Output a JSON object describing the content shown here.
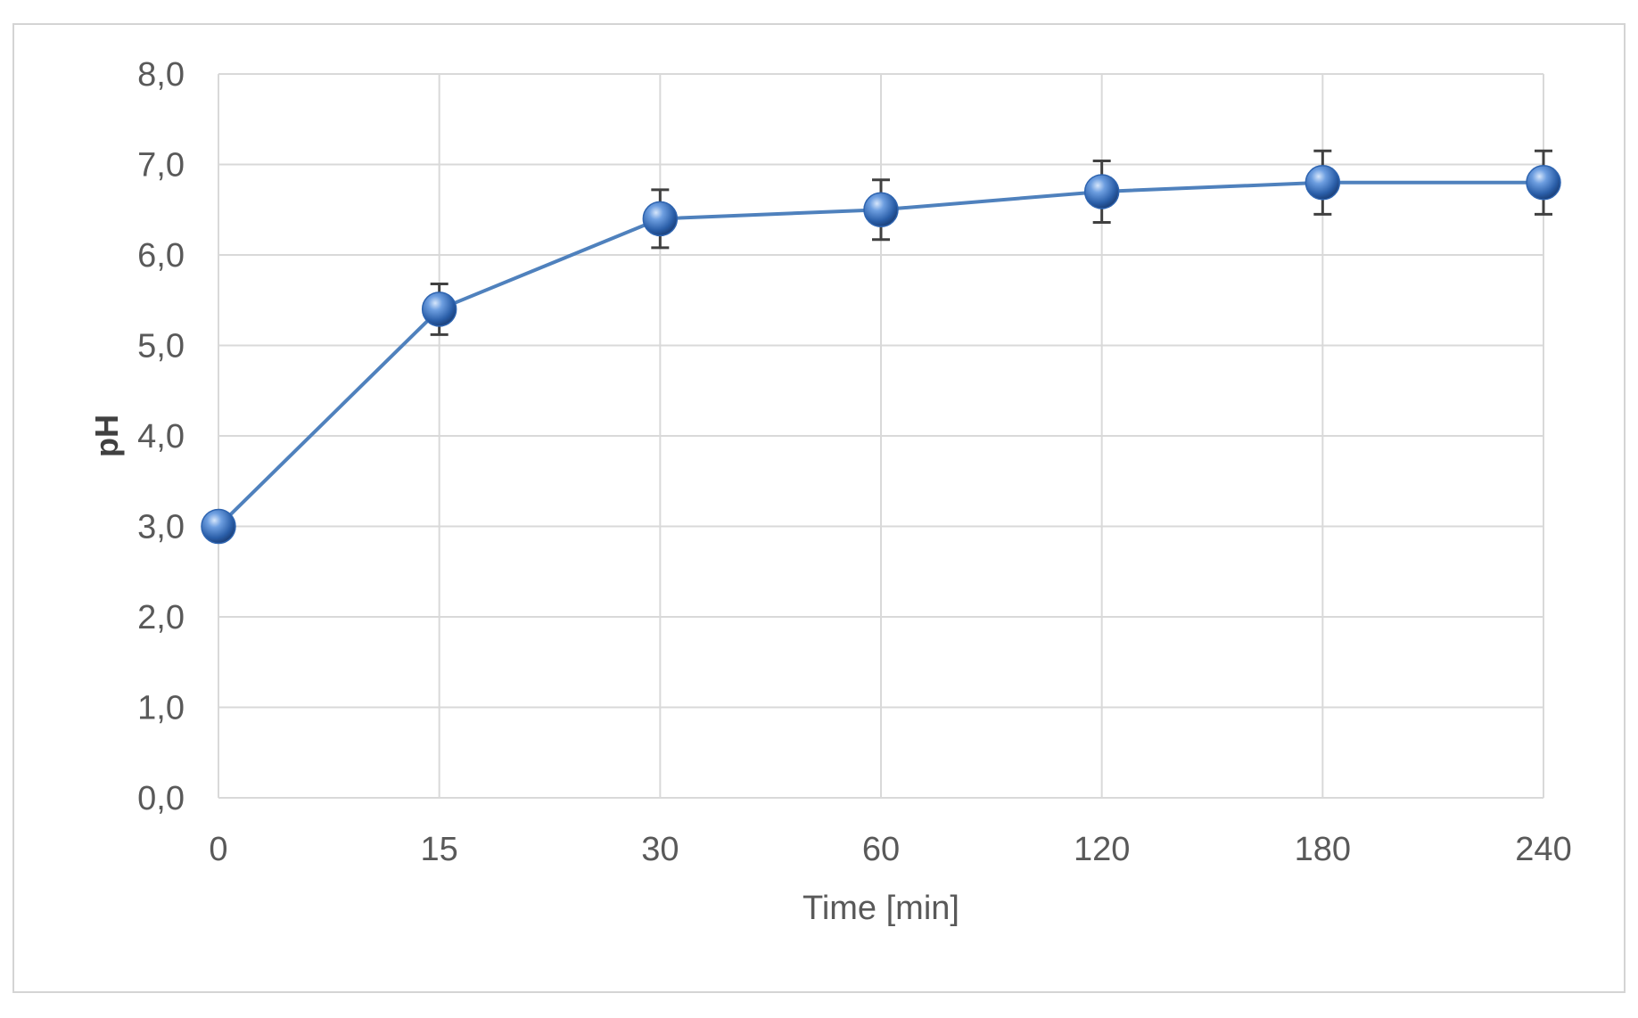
{
  "chart_data": {
    "type": "line",
    "title": "",
    "xlabel": "Time [min]",
    "ylabel": "pH",
    "categories": [
      "0",
      "15",
      "30",
      "60",
      "120",
      "180",
      "240"
    ],
    "series": [
      {
        "values": [
          3.0,
          5.4,
          6.4,
          6.5,
          6.7,
          6.8,
          6.8
        ],
        "error": [
          0.0,
          0.28,
          0.32,
          0.33,
          0.34,
          0.35,
          0.35
        ],
        "color": "#4f81bd",
        "marker_color": "#2e64b0"
      }
    ],
    "ylim": [
      0,
      8
    ],
    "y_ticks": [
      "0,0",
      "1,0",
      "2,0",
      "3,0",
      "4,0",
      "5,0",
      "6,0",
      "7,0",
      "8,0"
    ],
    "grid": true,
    "legend": "none"
  }
}
